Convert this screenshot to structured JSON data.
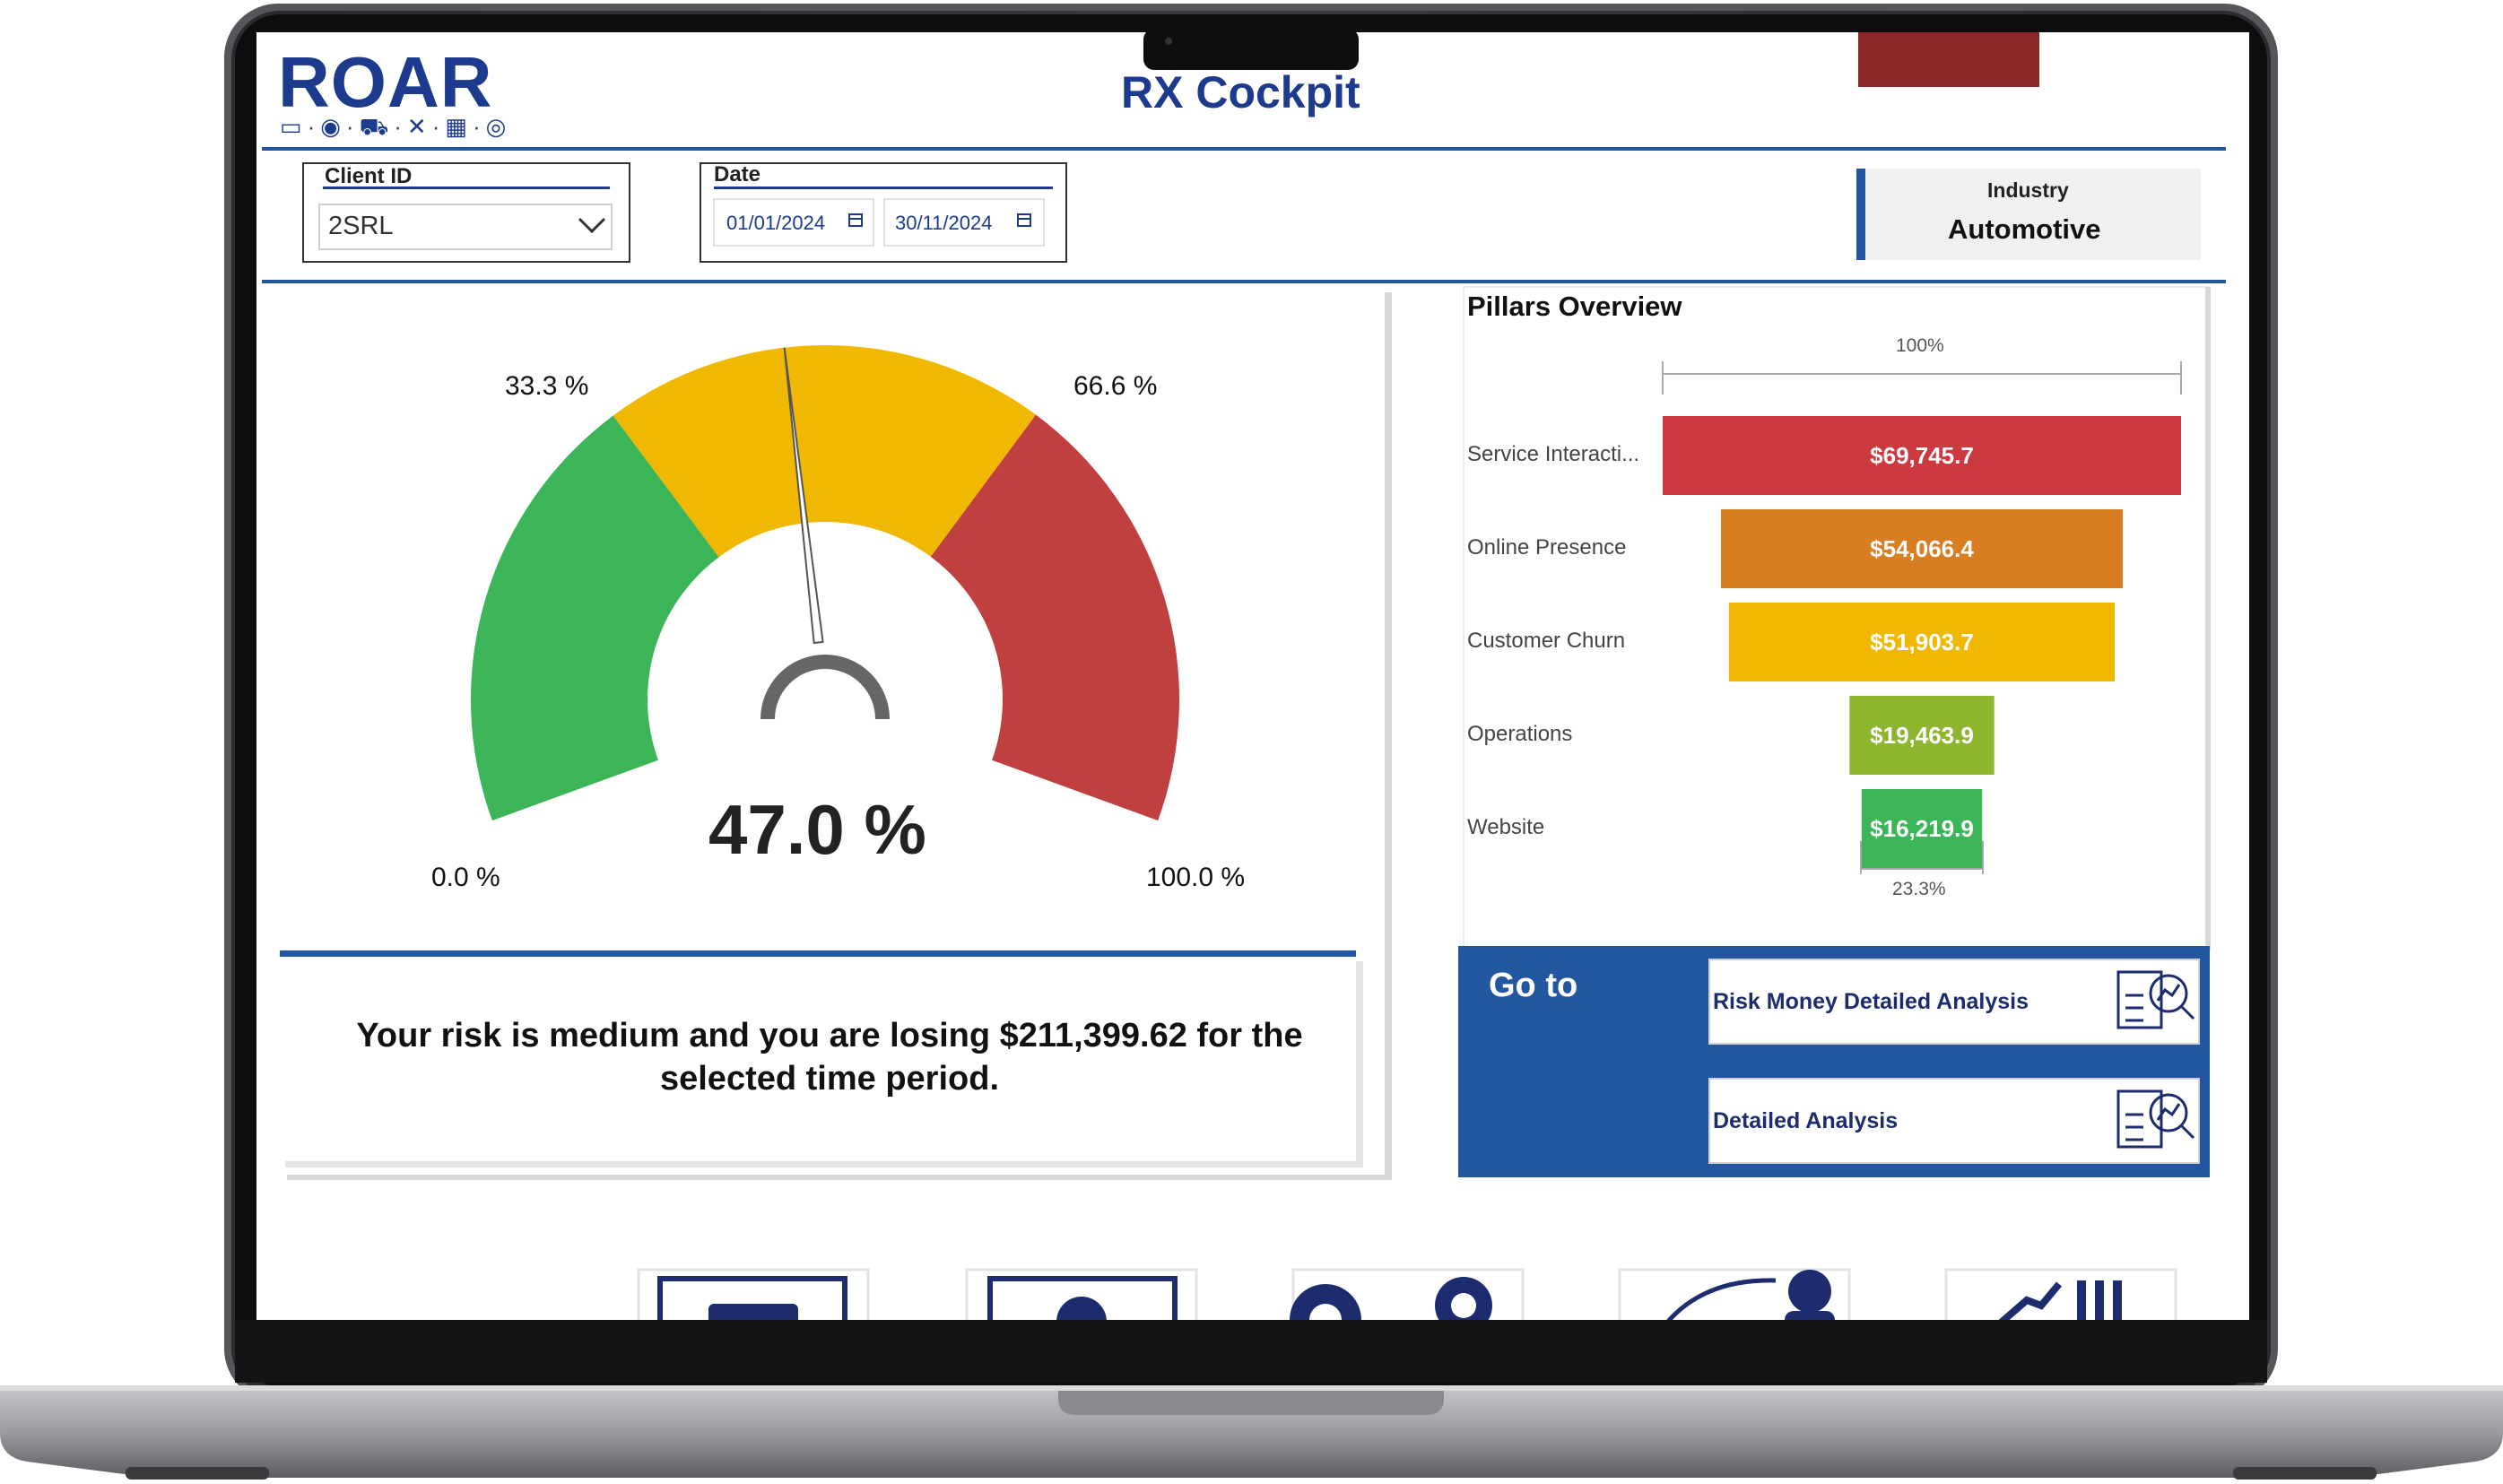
{
  "header": {
    "logo": "ROAR",
    "logo_icons": "▭·◉·⛟·✕·▦·◎",
    "title": "RX Cockpit"
  },
  "filters": {
    "client_id": {
      "label": "Client ID",
      "value": "2SRL"
    },
    "date": {
      "label": "Date",
      "start": "01/01/2024",
      "end": "30/11/2024"
    }
  },
  "industry": {
    "label": "Industry",
    "value": "Automotive"
  },
  "gauge": {
    "value_percent": 47.0,
    "value_label": "47.0 %",
    "min_label": "0.0 %",
    "low_label": "33.3 %",
    "high_label": "66.6 %",
    "max_label": "100.0 %",
    "colors": {
      "green": "#3bb557",
      "yellow": "#f0b800",
      "red": "#c04040",
      "needle": "#555555"
    }
  },
  "risk_message": "Your risk is medium and you are losing $211,399.62 for the selected time period.",
  "pillars": {
    "title": "Pillars Overview",
    "top_label": "100%",
    "bottom_label": "23.3%"
  },
  "chart_data": {
    "type": "bar",
    "title": "Pillars Overview",
    "categories": [
      "Service Interacti...",
      "Online Presence",
      "Customer Churn",
      "Operations",
      "Website"
    ],
    "values": [
      69745.7,
      54066.4,
      51903.7,
      19463.9,
      16219.9
    ],
    "value_labels": [
      "$69,745.7",
      "$54,066.4",
      "$51,903.7",
      "$19,463.9",
      "$16,219.9"
    ],
    "colors": [
      "#cc3a3f",
      "#d97d22",
      "#f0b800",
      "#8db62e",
      "#3bb557"
    ]
  },
  "goto": {
    "title": "Go to",
    "buttons": [
      {
        "label": "Risk Money Detailed Analysis",
        "icon": "magnifier-chart-icon"
      },
      {
        "label": "Detailed Analysis",
        "icon": "magnifier-chart-icon"
      }
    ]
  },
  "bottom_nav": [
    {
      "icon": "monitor-icon"
    },
    {
      "icon": "gear-screen-icon"
    },
    {
      "icon": "gears-icon"
    },
    {
      "icon": "customer-icon"
    },
    {
      "icon": "growth-chart-icon"
    }
  ],
  "colors": {
    "brand": "#1c3a8e",
    "panel_blue": "#2356a0",
    "accent_dark_red": "#8b2727"
  }
}
